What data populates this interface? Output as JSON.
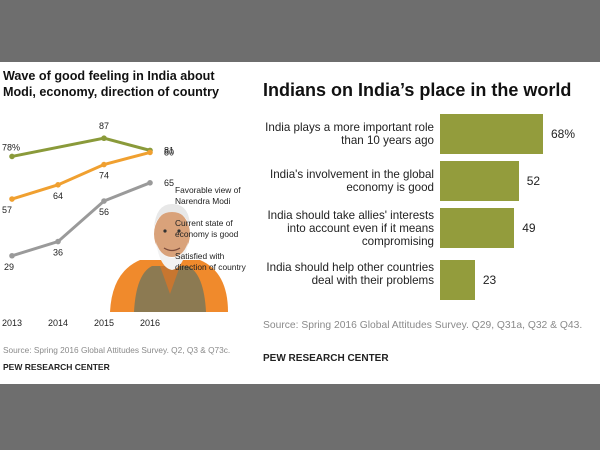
{
  "left": {
    "title": "Wave of good feeling in India about Modi, economy, direction of country",
    "source": "Source: Spring 2016 Global Attitudes Survey. Q2, Q3 & Q73c.",
    "brand": "PEW RESEARCH CENTER",
    "legend": [
      "Favorable view of Narendra Modi",
      "Current state of economy is good",
      "Satisfied with direction of country"
    ],
    "photo_label": "portrait-photo"
  },
  "right": {
    "title": "Indians on India’s place in the world",
    "source": "Source: Spring 2016 Global Attitudes Survey. Q29, Q31a, Q32 & Q43.",
    "brand": "PEW RESEARCH CENTER"
  },
  "chart_data": [
    {
      "type": "line",
      "title": "Wave of good feeling in India about Modi, economy, direction of country",
      "x": [
        "2013",
        "2014",
        "2015",
        "2016"
      ],
      "series": [
        {
          "name": "Favorable view of Narendra Modi",
          "x": [
            "2013",
            "2015",
            "2016"
          ],
          "values": [
            78,
            87,
            81
          ],
          "labels": [
            "78%",
            "87",
            "81"
          ],
          "color": "#8a9a3a"
        },
        {
          "name": "Current state of economy is good",
          "x": [
            "2013",
            "2014",
            "2015",
            "2016"
          ],
          "values": [
            57,
            64,
            74,
            80
          ],
          "labels": [
            "57",
            "64",
            "74",
            "80"
          ],
          "color": "#f0a030"
        },
        {
          "name": "Satisfied with direction of country",
          "x": [
            "2013",
            "2014",
            "2015",
            "2016"
          ],
          "values": [
            29,
            36,
            56,
            65
          ],
          "labels": [
            "29",
            "36",
            "56",
            "65"
          ],
          "color": "#9a9a9a"
        }
      ],
      "ylim": [
        20,
        95
      ]
    },
    {
      "type": "bar",
      "title": "Indians on India’s place in the world",
      "categories": [
        "India plays a more important role than 10 years ago",
        "India's involvement in the global economy is good",
        "India should take allies' interests into account even if it means compromising",
        "India should help other countries deal with their problems"
      ],
      "values": [
        68,
        52,
        49,
        23
      ],
      "value_labels": [
        "68%",
        "52",
        "49",
        "23"
      ],
      "color": "#939c3c",
      "xlim": [
        0,
        68
      ]
    }
  ]
}
